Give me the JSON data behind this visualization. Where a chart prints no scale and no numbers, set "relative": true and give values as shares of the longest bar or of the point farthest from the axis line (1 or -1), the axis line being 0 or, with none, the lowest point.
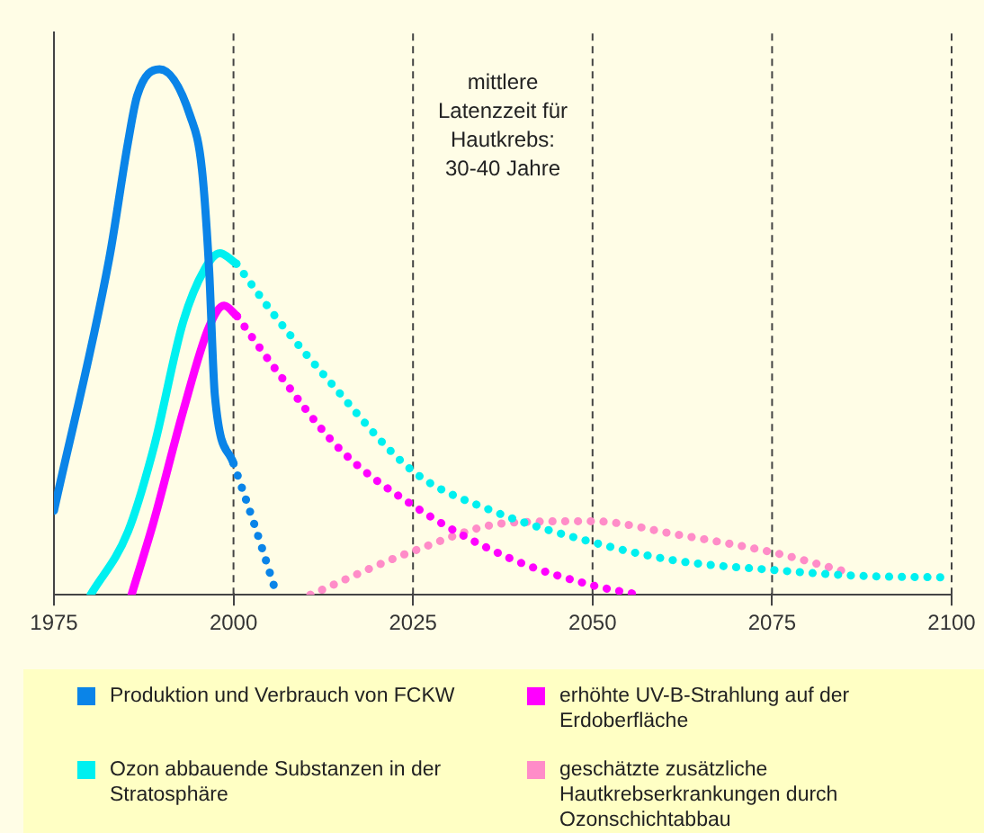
{
  "chart_data": {
    "type": "line",
    "relative": true,
    "xlim": [
      1975,
      2100
    ],
    "xticks": [
      1975,
      2000,
      2025,
      2050,
      2075,
      2100
    ],
    "grid": "x",
    "tick_labels": "x",
    "legend": "bottom",
    "marker": "none",
    "annotations": [
      "mittlere Latenzzeit für Hautkrebs: 30-40 Jahre"
    ],
    "series": [
      {
        "name": "Produktion und Verbrauch von FCKW",
        "color": "#0a84e8",
        "line_style": "solid",
        "x": [
          1975,
          1982.7,
          1985.3,
          1986.6,
          1989.7,
          1994,
          1995.6,
          1996.6,
          1997.4,
          2000
        ],
        "values": [
          0.16,
          0.64,
          0.86,
          0.95,
          1,
          0.91,
          0.81,
          0.62,
          0.38,
          0.25
        ]
      },
      {
        "color": "#0a84e8",
        "line_style": "dotted",
        "x": [
          2000,
          2003,
          2005.8
        ],
        "values": [
          0.25,
          0.13,
          0.01
        ]
      },
      {
        "name": "Ozon abbauende Substanzen in der Stratosphäre",
        "color": "#00f0f0",
        "line_style": "solid",
        "x": [
          1980.1,
          1985.3,
          1988.9,
          1993,
          1996,
          1998.1,
          2000.4
        ],
        "values": [
          0,
          0.12,
          0.28,
          0.52,
          0.62,
          0.65,
          0.63
        ]
      },
      {
        "color": "#00f0f0",
        "line_style": "dotted",
        "x": [
          2000.4,
          2005.8,
          2012.8,
          2025,
          2036,
          2050,
          2061.6,
          2075.3,
          2087.3,
          2100
        ],
        "values": [
          0.63,
          0.53,
          0.415,
          0.235,
          0.16,
          0.1,
          0.065,
          0.047,
          0.036,
          0.033
        ]
      },
      {
        "name": "erhöhte UV-B-Strahlung auf der Erdoberfläche",
        "color": "#ff00ff",
        "line_style": "solid",
        "x": [
          1985.8,
          1988.9,
          1993,
          1996.6,
          1998.7,
          2000.5
        ],
        "values": [
          0,
          0.14,
          0.35,
          0.51,
          0.55,
          0.53
        ]
      },
      {
        "color": "#ff00ff",
        "line_style": "dotted",
        "x": [
          2000.5,
          2005.8,
          2014.6,
          2025,
          2038.4,
          2050,
          2056.5
        ],
        "values": [
          0.53,
          0.43,
          0.28,
          0.17,
          0.07,
          0.018,
          0
        ]
      },
      {
        "name": "geschätzte zusätzliche Hautkrebserkrankungen durch Ozonschichtabbau",
        "color": "#ff8cc8",
        "line_style": "dotted",
        "x": [
          2010.7,
          2025,
          2038.4,
          2050,
          2061.6,
          2075.3,
          2085.5
        ],
        "values": [
          0,
          0.083,
          0.137,
          0.14,
          0.115,
          0.08,
          0.043
        ]
      }
    ]
  }
}
